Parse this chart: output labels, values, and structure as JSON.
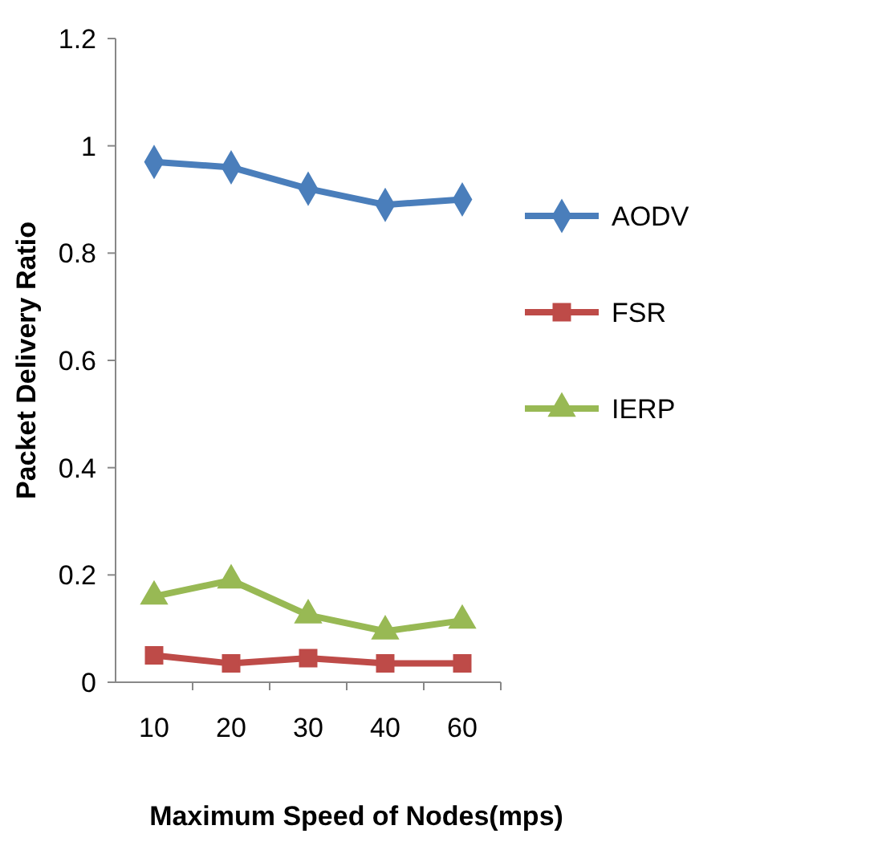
{
  "chart_data": {
    "type": "line",
    "xlabel": "Maximum Speed of Nodes(mps)",
    "ylabel": "Packet Delivery Ratio",
    "categories": [
      "10",
      "20",
      "30",
      "40",
      "60"
    ],
    "series": [
      {
        "name": "AODV",
        "color": "#4a7ebb",
        "marker": "diamond",
        "values": [
          0.97,
          0.96,
          0.92,
          0.89,
          0.9
        ]
      },
      {
        "name": "FSR",
        "color": "#be4b48",
        "marker": "square",
        "values": [
          0.05,
          0.035,
          0.045,
          0.035,
          0.035
        ]
      },
      {
        "name": "IERP",
        "color": "#98b954",
        "marker": "triangle",
        "values": [
          0.16,
          0.19,
          0.125,
          0.095,
          0.115
        ]
      }
    ],
    "ylim": [
      0,
      1.2
    ],
    "yticks": [
      0,
      0.2,
      0.4,
      0.6,
      0.8,
      1,
      1.2
    ],
    "legend": "right"
  }
}
